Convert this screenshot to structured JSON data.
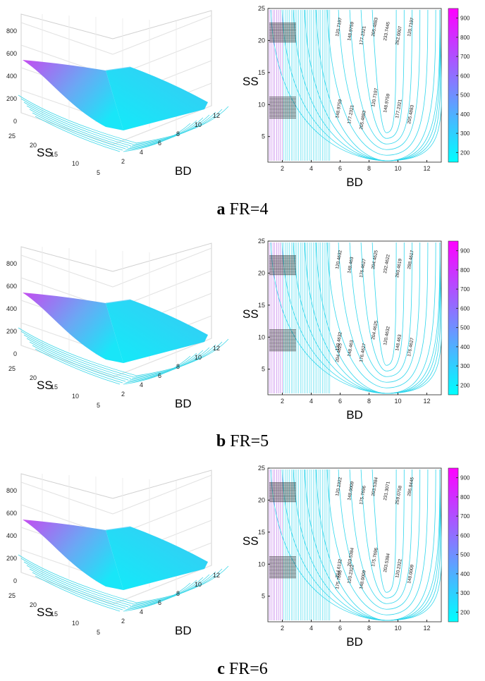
{
  "figures": [
    {
      "caption_letter": "a",
      "caption_text": "FR=4",
      "surface": {
        "zticks": [
          "0",
          "200",
          "400",
          "600",
          "800"
        ],
        "ss_ticks": [
          "25",
          "20",
          "15",
          "10",
          "5"
        ],
        "bd_ticks": [
          "2",
          "4",
          "6",
          "8",
          "10",
          "12"
        ],
        "xlabel": "SS",
        "ylabel": "BD"
      },
      "contour": {
        "xticks": [
          "2",
          "4",
          "6",
          "8",
          "10",
          "12"
        ],
        "yticks": [
          "5",
          "10",
          "15",
          "20",
          "25"
        ],
        "xlabel": "BD",
        "ylabel": "SS",
        "colorbar_ticks": [
          "200",
          "300",
          "400",
          "500",
          "600",
          "700",
          "800",
          "900"
        ],
        "labels": [
          "120.7197",
          "148.9759",
          "177.2321",
          "205.4883",
          "233.7445",
          "262.0007",
          "120.7197",
          "148.9759",
          "177.2321",
          "205.4883",
          "120.7197",
          "148.9759",
          "177.2321",
          "205.4883"
        ]
      }
    },
    {
      "caption_letter": "b",
      "caption_text": "FR=5",
      "surface": {
        "zticks": [
          "0",
          "200",
          "400",
          "600",
          "800"
        ],
        "ss_ticks": [
          "25",
          "20",
          "15",
          "10",
          "5"
        ],
        "bd_ticks": [
          "2",
          "4",
          "6",
          "8",
          "10",
          "12"
        ],
        "xlabel": "SS",
        "ylabel": "BD"
      },
      "contour": {
        "xticks": [
          "2",
          "4",
          "6",
          "8",
          "10",
          "12"
        ],
        "yticks": [
          "5",
          "10",
          "15",
          "20",
          "25"
        ],
        "xlabel": "BD",
        "ylabel": "SS",
        "colorbar_ticks": [
          "200",
          "300",
          "400",
          "500",
          "600",
          "700",
          "800",
          "900"
        ],
        "labels": [
          "120.4632",
          "148.463",
          "176.4627",
          "204.4625",
          "232.4622",
          "260.4619",
          "288.4617",
          "120.4632",
          "148.463",
          "176.4627",
          "204.4625",
          "120.4632",
          "148.463",
          "176.4627",
          "204.4625"
        ]
      }
    },
    {
      "caption_letter": "c",
      "caption_text": "FR=6",
      "surface": {
        "zticks": [
          "0",
          "200",
          "400",
          "600",
          "800"
        ],
        "ss_ticks": [
          "25",
          "20",
          "15",
          "10",
          "5"
        ],
        "bd_ticks": [
          "2",
          "4",
          "6",
          "8",
          "10",
          "12"
        ],
        "xlabel": "SS",
        "ylabel": "BD"
      },
      "contour": {
        "xticks": [
          "2",
          "4",
          "6",
          "8",
          "10",
          "12"
        ],
        "yticks": [
          "5",
          "10",
          "15",
          "20",
          "25"
        ],
        "xlabel": "BD",
        "ylabel": "SS",
        "colorbar_ticks": [
          "200",
          "300",
          "400",
          "500",
          "600",
          "700",
          "800",
          "900"
        ],
        "labels": [
          "120.2322",
          "148.0009",
          "175.7696",
          "203.5384",
          "231.3071",
          "259.0758",
          "286.8445",
          "314.6132",
          "120.2322",
          "148.0009",
          "175.7696",
          "203.5384",
          "120.2322",
          "148.0009",
          "175.7696",
          "203.5384"
        ]
      }
    }
  ],
  "chart_data": [
    {
      "type": "surface",
      "title": "",
      "xlabel": "SS",
      "ylabel": "BD",
      "zlim": [
        0,
        800
      ],
      "x_range": [
        1,
        25
      ],
      "y_range": [
        1,
        13
      ],
      "colormap": [
        "#00ffff",
        "#ff00ff"
      ],
      "approx_values": [
        {
          "BD": 1,
          "SS": 25,
          "z": 720
        },
        {
          "BD": 9,
          "SS": 5,
          "z": 95
        },
        {
          "BD": 13,
          "SS": 25,
          "z": 330
        }
      ]
    },
    {
      "type": "contour",
      "title": "",
      "xlabel": "BD",
      "ylabel": "SS",
      "xlim": [
        1,
        13
      ],
      "ylim": [
        1,
        25
      ],
      "colorbar": [
        150,
        950
      ],
      "levels": [
        120.7197,
        148.9759,
        177.2321,
        205.4883,
        233.7445,
        262.0007
      ]
    },
    {
      "type": "surface",
      "title": "",
      "xlabel": "SS",
      "ylabel": "BD",
      "zlim": [
        0,
        800
      ],
      "x_range": [
        1,
        25
      ],
      "y_range": [
        1,
        13
      ],
      "colormap": [
        "#00ffff",
        "#ff00ff"
      ],
      "approx_values": [
        {
          "BD": 1,
          "SS": 25,
          "z": 690
        },
        {
          "BD": 9,
          "SS": 5,
          "z": 100
        },
        {
          "BD": 13,
          "SS": 25,
          "z": 330
        }
      ]
    },
    {
      "type": "contour",
      "title": "",
      "xlabel": "BD",
      "ylabel": "SS",
      "xlim": [
        1,
        13
      ],
      "ylim": [
        1,
        25
      ],
      "colorbar": [
        150,
        950
      ],
      "levels": [
        120.4632,
        148.463,
        176.4627,
        204.4625,
        232.4622,
        260.4619,
        288.4617
      ]
    },
    {
      "type": "surface",
      "title": "",
      "xlabel": "SS",
      "ylabel": "BD",
      "zlim": [
        0,
        800
      ],
      "x_range": [
        1,
        25
      ],
      "y_range": [
        1,
        13
      ],
      "colormap": [
        "#00ffff",
        "#ff00ff"
      ],
      "approx_values": [
        {
          "BD": 1,
          "SS": 25,
          "z": 700
        },
        {
          "BD": 9,
          "SS": 5,
          "z": 100
        },
        {
          "BD": 13,
          "SS": 25,
          "z": 330
        }
      ]
    },
    {
      "type": "contour",
      "title": "",
      "xlabel": "BD",
      "ylabel": "SS",
      "xlim": [
        1,
        13
      ],
      "ylim": [
        1,
        25
      ],
      "colorbar": [
        150,
        950
      ],
      "levels": [
        120.2322,
        148.0009,
        175.7696,
        203.5384,
        231.3071,
        259.0758,
        286.8445,
        314.6132
      ]
    }
  ]
}
